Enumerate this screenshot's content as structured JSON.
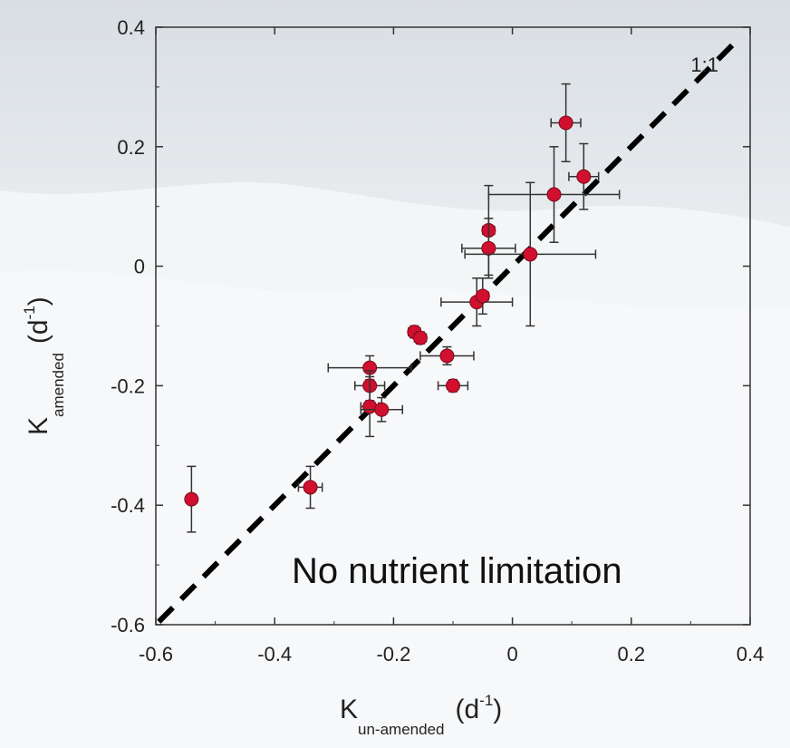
{
  "chart_data": {
    "type": "scatter",
    "xlim": [
      -0.6,
      0.4
    ],
    "ylim": [
      -0.6,
      0.4
    ],
    "xticks": [
      -0.6,
      -0.4,
      -0.2,
      0,
      0.2,
      0.4
    ],
    "yticks": [
      -0.6,
      -0.4,
      -0.2,
      0,
      0.2,
      0.4
    ],
    "xtick_labels": [
      "-0.6",
      "-0.4",
      "-0.2",
      "0",
      "0.2",
      "0.4"
    ],
    "ytick_labels": [
      "-0.6",
      "-0.4",
      "-0.2",
      "0",
      "0.2",
      "0.4"
    ],
    "xlabel": {
      "main": "K",
      "sub": "un-amended",
      "unit": "(d",
      "sup": "-1",
      "close": ")"
    },
    "ylabel": {
      "main": "K",
      "sub": "amended",
      "unit": "(d",
      "sup": "-1",
      "close": ")"
    },
    "grid": false,
    "reference_line": {
      "label": "1:1",
      "slope": 1,
      "intercept": 0,
      "style": "dashed"
    },
    "marker_color": "#d0102e",
    "points": [
      {
        "x": 0.09,
        "y": 0.24,
        "xerr": 0.025,
        "yerr": 0.065
      },
      {
        "x": 0.12,
        "y": 0.15,
        "xerr": 0.025,
        "yerr": 0.055
      },
      {
        "x": 0.07,
        "y": 0.12,
        "xerr": 0.11,
        "yerr": 0.08
      },
      {
        "x": -0.04,
        "y": 0.06,
        "xerr": 0.01,
        "yerr": 0.075
      },
      {
        "x": -0.04,
        "y": 0.03,
        "xerr": 0.045,
        "yerr": 0.05
      },
      {
        "x": 0.03,
        "y": 0.02,
        "xerr": 0.11,
        "yerr": 0.12
      },
      {
        "x": -0.06,
        "y": -0.06,
        "xerr": 0.06,
        "yerr": 0.04
      },
      {
        "x": -0.05,
        "y": -0.05,
        "xerr": 0.01,
        "yerr": 0.03
      },
      {
        "x": -0.165,
        "y": -0.11,
        "xerr": 0.01,
        "yerr": 0.01
      },
      {
        "x": -0.155,
        "y": -0.12,
        "xerr": 0.01,
        "yerr": 0.01
      },
      {
        "x": -0.11,
        "y": -0.15,
        "xerr": 0.045,
        "yerr": 0.015
      },
      {
        "x": -0.1,
        "y": -0.2,
        "xerr": 0.025,
        "yerr": 0.01
      },
      {
        "x": -0.24,
        "y": -0.17,
        "xerr": 0.07,
        "yerr": 0.02
      },
      {
        "x": -0.24,
        "y": -0.2,
        "xerr": 0.025,
        "yerr": 0.025
      },
      {
        "x": -0.24,
        "y": -0.235,
        "xerr": 0.015,
        "yerr": 0.05
      },
      {
        "x": -0.22,
        "y": -0.24,
        "xerr": 0.035,
        "yerr": 0.02
      },
      {
        "x": -0.34,
        "y": -0.37,
        "xerr": 0.02,
        "yerr": 0.035
      },
      {
        "x": -0.54,
        "y": -0.39,
        "xerr": 0.0,
        "yerr": 0.055
      }
    ]
  },
  "overlay_text": "No nutrient limitation",
  "colors": {
    "marker": "#d0102e",
    "axis": "#333333",
    "line": "#000000"
  }
}
